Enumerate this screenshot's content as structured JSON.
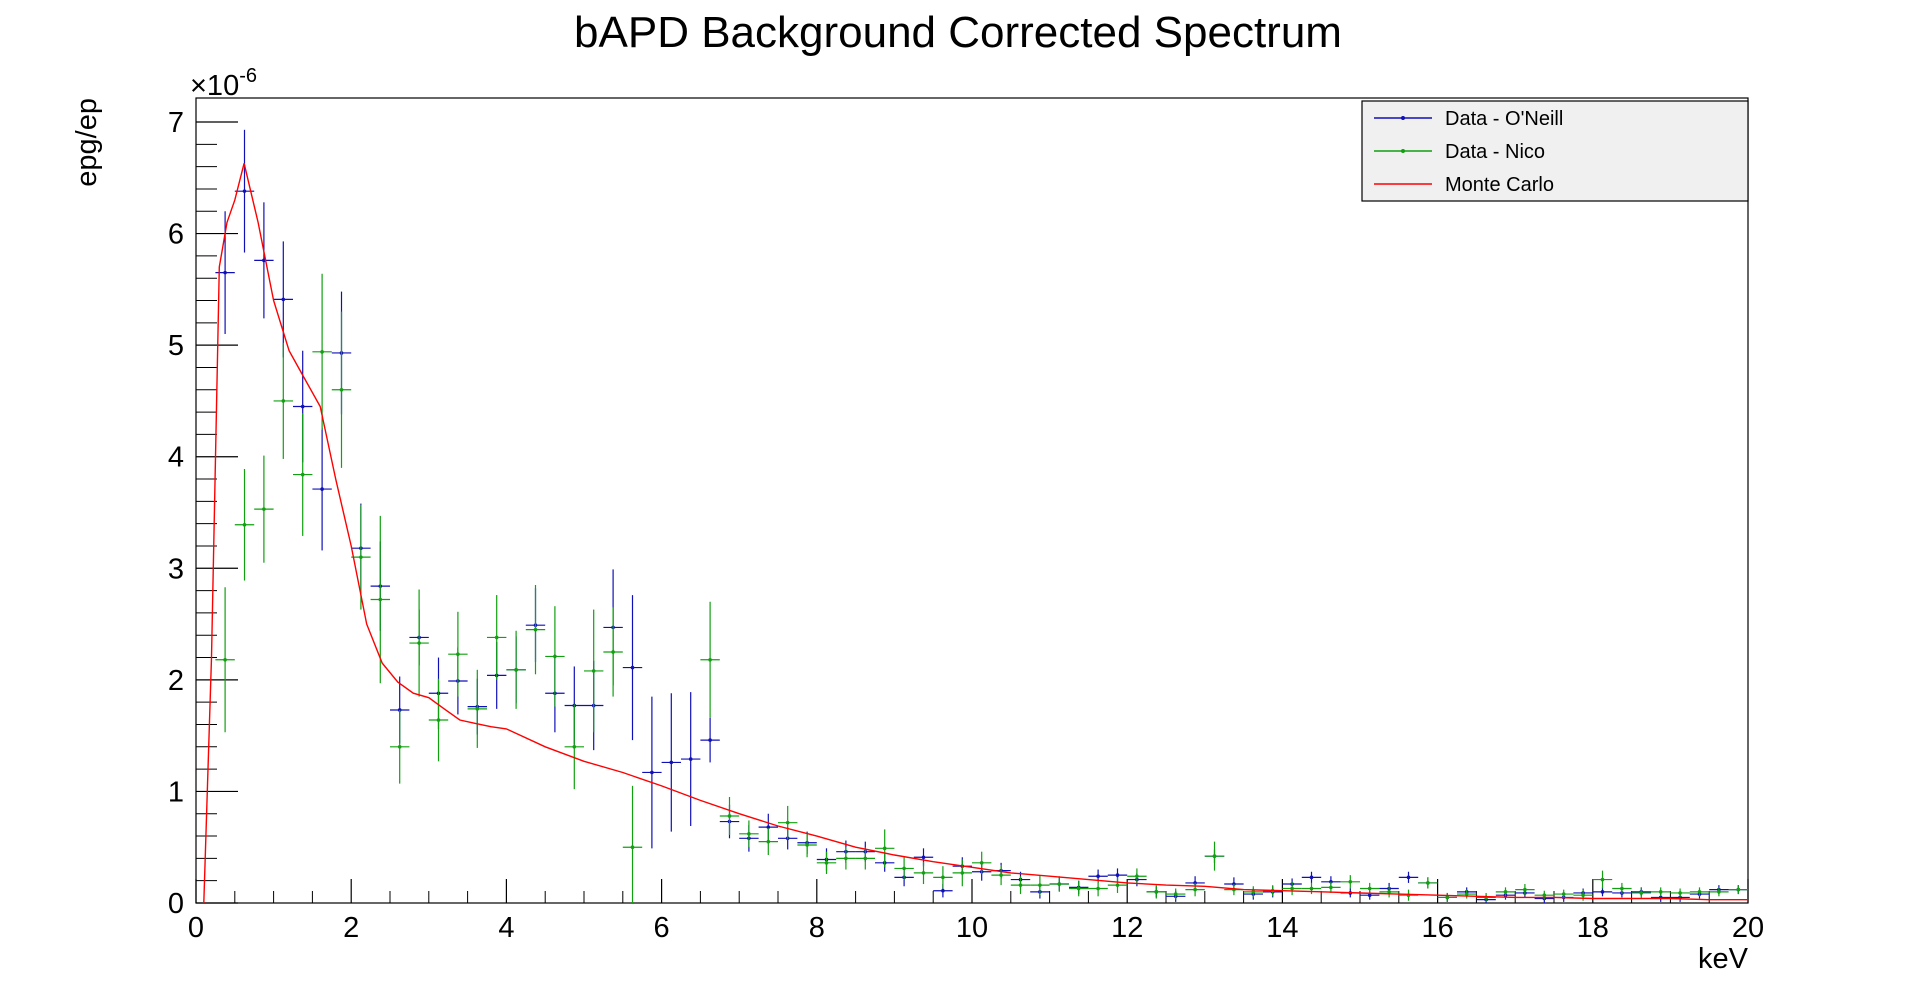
{
  "chart_data": {
    "type": "scatter",
    "title": "bAPD Background Corrected Spectrum",
    "xlabel": "keV",
    "ylabel": "epg/ep",
    "y_exponent_label": "×10",
    "y_exponent_power": "-6",
    "xlim": [
      0,
      20
    ],
    "ylim": [
      0,
      7
    ],
    "x_ticks": [
      0,
      2,
      4,
      6,
      8,
      10,
      12,
      14,
      16,
      18,
      20
    ],
    "y_ticks": [
      0,
      1,
      2,
      3,
      4,
      5,
      6,
      7
    ],
    "grid": false,
    "legend_position": "top-right",
    "series": [
      {
        "name": "Data - O'Neill",
        "color": "#1010b8",
        "style": "points-with-error-bars",
        "x": [
          0.375,
          0.625,
          0.875,
          1.125,
          1.375,
          1.625,
          1.875,
          2.125,
          2.375,
          2.625,
          2.875,
          3.125,
          3.375,
          3.625,
          3.875,
          4.125,
          4.375,
          4.625,
          4.875,
          5.125,
          5.375,
          5.625,
          5.875,
          6.125,
          6.375,
          6.625,
          6.875,
          7.125,
          7.375,
          7.625,
          7.875,
          8.125,
          8.375,
          8.625,
          8.875,
          9.125,
          9.375,
          9.625,
          9.875,
          10.125,
          10.375,
          10.625,
          10.875,
          11.125,
          11.375,
          11.625,
          11.875,
          12.125,
          12.375,
          12.625,
          12.875,
          13.125,
          13.375,
          13.625,
          13.875,
          14.125,
          14.375,
          14.625,
          14.875,
          15.125,
          15.375,
          15.625,
          15.875,
          16.125,
          16.375,
          16.625,
          16.875,
          17.125,
          17.375,
          17.625,
          17.875,
          18.125,
          18.375,
          18.625,
          18.875,
          19.125,
          19.375,
          19.625,
          19.875
        ],
        "y": [
          5.65,
          6.38,
          5.76,
          5.41,
          4.45,
          3.71,
          4.93,
          3.18,
          2.84,
          1.73,
          2.38,
          1.88,
          1.99,
          1.76,
          2.04,
          2.09,
          2.49,
          1.88,
          1.77,
          1.77,
          2.47,
          2.11,
          1.17,
          1.26,
          1.29,
          1.46,
          0.73,
          0.58,
          0.68,
          0.58,
          0.54,
          0.39,
          0.46,
          0.46,
          0.36,
          0.23,
          0.41,
          0.11,
          0.33,
          0.28,
          0.29,
          0.21,
          0.1,
          0.17,
          0.14,
          0.24,
          0.25,
          0.21,
          0.1,
          0.06,
          0.18,
          0.42,
          0.17,
          0.08,
          0.1,
          0.17,
          0.23,
          0.19,
          0.09,
          0.07,
          0.13,
          0.23,
          0.18,
          0.05,
          0.1,
          0.03,
          0.07,
          0.09,
          0.04,
          0.05,
          0.09,
          0.1,
          0.09,
          0.1,
          0.05,
          0.05,
          0.08,
          0.12,
          0.12
        ],
        "y_err": [
          0.55,
          0.55,
          0.52,
          0.52,
          0.5,
          0.55,
          0.55,
          0.4,
          0.4,
          0.3,
          0.25,
          0.32,
          0.3,
          0.25,
          0.3,
          0.3,
          0.33,
          0.35,
          0.35,
          0.4,
          0.52,
          0.65,
          0.68,
          0.62,
          0.6,
          0.2,
          0.15,
          0.12,
          0.12,
          0.1,
          0.1,
          0.1,
          0.1,
          0.09,
          0.08,
          0.08,
          0.08,
          0.06,
          0.08,
          0.08,
          0.07,
          0.07,
          0.06,
          0.06,
          0.06,
          0.06,
          0.06,
          0.06,
          0.05,
          0.05,
          0.06,
          0.06,
          0.06,
          0.05,
          0.05,
          0.05,
          0.05,
          0.05,
          0.04,
          0.04,
          0.05,
          0.05,
          0.05,
          0.04,
          0.04,
          0.04,
          0.04,
          0.04,
          0.04,
          0.04,
          0.04,
          0.04,
          0.04,
          0.04,
          0.04,
          0.04,
          0.04,
          0.04,
          0.04
        ]
      },
      {
        "name": "Data - Nico",
        "color": "#10a010",
        "style": "points-with-error-bars",
        "x": [
          0.375,
          0.625,
          0.875,
          1.125,
          1.375,
          1.625,
          1.875,
          2.125,
          2.375,
          2.625,
          2.875,
          3.125,
          3.375,
          3.625,
          3.875,
          4.125,
          4.375,
          4.625,
          4.875,
          5.125,
          5.375,
          5.625,
          6.625,
          6.875,
          7.125,
          7.375,
          7.625,
          7.875,
          8.125,
          8.375,
          8.625,
          8.875,
          9.125,
          9.375,
          9.625,
          9.875,
          10.125,
          10.375,
          10.625,
          10.875,
          11.125,
          11.375,
          11.625,
          11.875,
          12.125,
          12.375,
          12.625,
          12.875,
          13.125,
          13.375,
          13.625,
          13.875,
          14.125,
          14.375,
          14.625,
          14.875,
          15.125,
          15.375,
          15.625,
          15.875,
          16.125,
          16.375,
          16.625,
          16.875,
          17.125,
          17.375,
          17.625,
          17.875,
          18.125,
          18.375,
          18.625,
          18.875,
          19.125,
          19.375,
          19.625,
          19.875
        ],
        "y": [
          2.18,
          3.39,
          3.53,
          4.5,
          3.84,
          4.94,
          4.6,
          3.1,
          2.72,
          1.4,
          2.33,
          1.64,
          2.23,
          1.74,
          2.38,
          2.09,
          2.45,
          2.21,
          1.4,
          2.08,
          2.25,
          0.5,
          2.18,
          0.78,
          0.62,
          0.55,
          0.72,
          0.52,
          0.36,
          0.4,
          0.4,
          0.49,
          0.31,
          0.27,
          0.23,
          0.27,
          0.36,
          0.25,
          0.16,
          0.16,
          0.17,
          0.13,
          0.13,
          0.16,
          0.24,
          0.1,
          0.08,
          0.12,
          0.42,
          0.12,
          0.1,
          0.11,
          0.13,
          0.13,
          0.14,
          0.19,
          0.13,
          0.1,
          0.07,
          0.18,
          0.05,
          0.08,
          0.05,
          0.1,
          0.12,
          0.07,
          0.08,
          0.07,
          0.21,
          0.13,
          0.09,
          0.1,
          0.09,
          0.1,
          0.1,
          0.12
        ],
        "y_err": [
          0.65,
          0.5,
          0.48,
          0.52,
          0.55,
          0.7,
          0.7,
          0.47,
          0.75,
          0.33,
          0.48,
          0.37,
          0.38,
          0.35,
          0.38,
          0.35,
          0.4,
          0.45,
          0.38,
          0.55,
          0.4,
          0.55,
          0.52,
          0.17,
          0.12,
          0.12,
          0.15,
          0.11,
          0.1,
          0.1,
          0.1,
          0.17,
          0.1,
          0.1,
          0.1,
          0.12,
          0.1,
          0.09,
          0.08,
          0.09,
          0.07,
          0.07,
          0.07,
          0.07,
          0.07,
          0.06,
          0.05,
          0.06,
          0.13,
          0.05,
          0.05,
          0.05,
          0.06,
          0.05,
          0.05,
          0.06,
          0.05,
          0.05,
          0.05,
          0.05,
          0.04,
          0.04,
          0.04,
          0.04,
          0.05,
          0.04,
          0.04,
          0.05,
          0.08,
          0.05,
          0.05,
          0.04,
          0.04,
          0.04,
          0.04,
          0.04
        ]
      },
      {
        "name": "Monte Carlo",
        "color": "#ff0000",
        "style": "line",
        "x": [
          0.1,
          0.2,
          0.3,
          0.4,
          0.5,
          0.62,
          0.8,
          1.0,
          1.2,
          1.4,
          1.6,
          1.8,
          2.0,
          2.2,
          2.4,
          2.6,
          2.8,
          3.0,
          3.2,
          3.4,
          3.6,
          3.8,
          4.0,
          4.5,
          5.0,
          5.5,
          6.0,
          6.5,
          7.0,
          7.5,
          8.0,
          8.5,
          9.0,
          9.5,
          10.0,
          10.5,
          11.0,
          11.5,
          12.0,
          12.5,
          13.0,
          13.5,
          14.0,
          14.5,
          15.0,
          15.5,
          16.0,
          16.5,
          17.0,
          17.5,
          18.0,
          18.5,
          19.0,
          19.5,
          20.0
        ],
        "y": [
          0.0,
          2.2,
          5.7,
          6.1,
          6.3,
          6.63,
          6.1,
          5.4,
          4.95,
          4.7,
          4.45,
          3.8,
          3.2,
          2.5,
          2.15,
          1.98,
          1.88,
          1.84,
          1.74,
          1.64,
          1.61,
          1.58,
          1.56,
          1.4,
          1.27,
          1.17,
          1.05,
          0.92,
          0.8,
          0.69,
          0.6,
          0.5,
          0.43,
          0.37,
          0.32,
          0.27,
          0.24,
          0.21,
          0.18,
          0.16,
          0.15,
          0.12,
          0.11,
          0.1,
          0.09,
          0.08,
          0.07,
          0.06,
          0.05,
          0.05,
          0.04,
          0.04,
          0.04,
          0.03,
          0.03
        ]
      }
    ]
  }
}
